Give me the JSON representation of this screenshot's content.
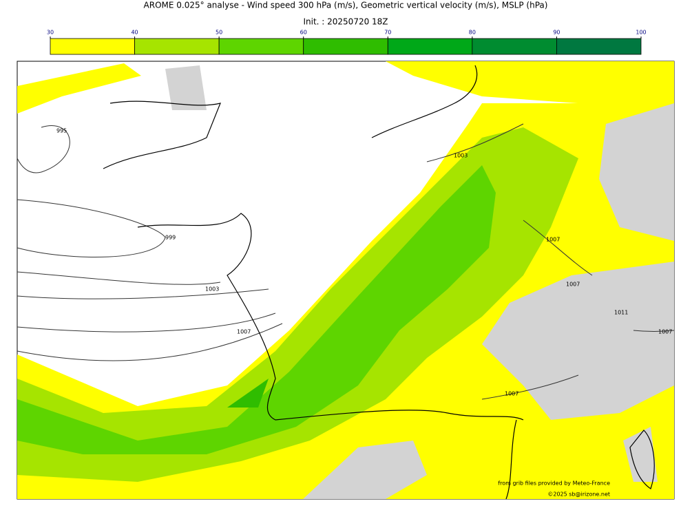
{
  "title": "AROME 0.025° analyse - Wind speed 300 hPa (m/s), Geometric vertical velocity (m/s), MSLP (hPa)",
  "subtitle": "Init. : 20250720 18Z",
  "colorbar": {
    "ticks": [
      30,
      40,
      50,
      60,
      70,
      80,
      90,
      100
    ],
    "colors": [
      "#ffff00",
      "#a6e400",
      "#5ed500",
      "#2fbd00",
      "#00a818",
      "#008c30",
      "#007840"
    ]
  },
  "contour_labels": [
    "995",
    "999",
    "1003",
    "1007",
    "1003",
    "1007",
    "1007",
    "1007",
    "1011",
    "1007"
  ],
  "credits": [
    "from grib files provided by Meteo-France",
    "©2025 sb@irizone.net"
  ]
}
